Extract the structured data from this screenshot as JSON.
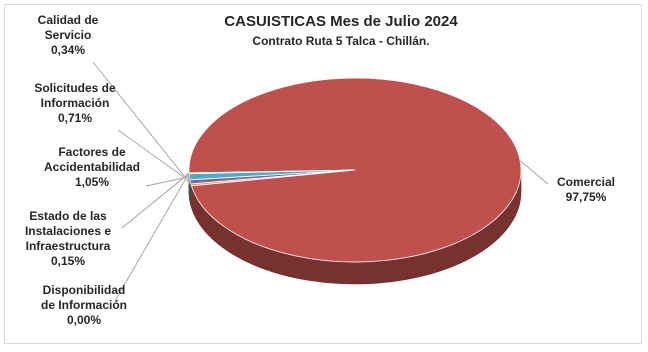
{
  "chart_data": {
    "type": "pie",
    "title": "CASUISTICAS Mes de Julio 2024",
    "subtitle": "Contrato Ruta 5 Talca - Chillán.",
    "slices": [
      {
        "label_lines": [
          "Comercial"
        ],
        "value_text": "97,75%",
        "value": 97.75,
        "color": "#c0504d"
      },
      {
        "label_lines": [
          "Calidad de",
          "Servicio"
        ],
        "value_text": "0,34%",
        "value": 0.34,
        "color": "#f79646"
      },
      {
        "label_lines": [
          "Solicitudes de",
          "Información"
        ],
        "value_text": "0,71%",
        "value": 0.71,
        "color": "#8064a2"
      },
      {
        "label_lines": [
          "Factores de",
          "Accidentabilidad"
        ],
        "value_text": "1,05%",
        "value": 1.05,
        "color": "#4bacc6"
      },
      {
        "label_lines": [
          "Estado de las",
          "Instalaciones e",
          "Infraestructura"
        ],
        "value_text": "0,15%",
        "value": 0.15,
        "color": "#9bbb59"
      },
      {
        "label_lines": [
          "Disponibilidad",
          "de Información"
        ],
        "value_text": "0,00%",
        "value": 0.0,
        "color": "#4f81bd"
      }
    ],
    "legend": "none"
  }
}
